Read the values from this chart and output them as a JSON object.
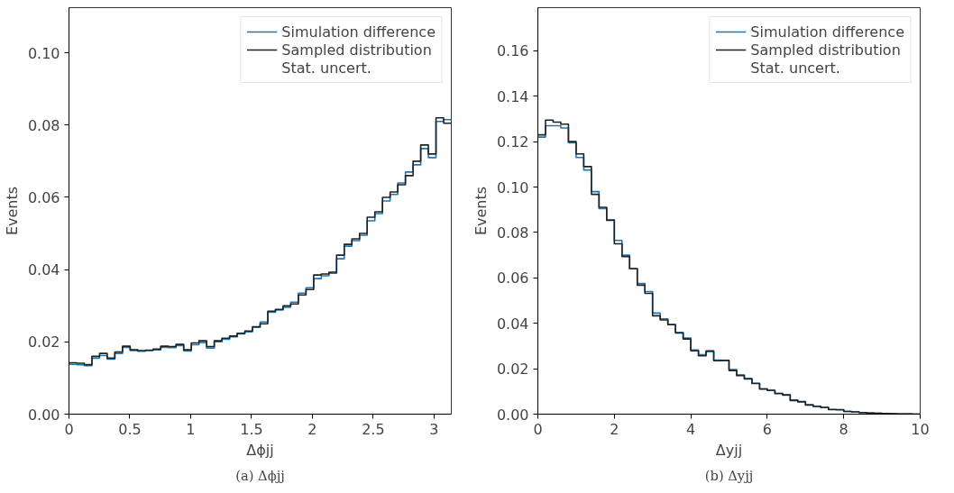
{
  "chart_data": [
    {
      "type": "histogram",
      "xlabel": "Δϕjj",
      "ylabel": "Events",
      "annotations": [
        "(a) Δϕjj",
        "Stat. uncert."
      ],
      "xlim": [
        0,
        3.1416
      ],
      "ylim": [
        0,
        0.1125
      ],
      "xticks": [
        0,
        0.5,
        1.0,
        1.5,
        2.0,
        2.5,
        3.0
      ],
      "yticks": [
        {
          "value": 0,
          "label": "0.00"
        },
        {
          "value": 0.02,
          "label": "0.02"
        },
        {
          "value": 0.04,
          "label": "0.04"
        },
        {
          "value": 0.06,
          "label": "0.06"
        },
        {
          "value": 0.08,
          "label": "0.08"
        },
        {
          "value": 0.1,
          "label": "0.10"
        }
      ],
      "grid": false,
      "legend": "top right",
      "legend_title": null,
      "bins": [
        0,
        0.0628,
        0.1257,
        0.1885,
        0.2513,
        0.3142,
        0.377,
        0.4398,
        0.5027,
        0.5655,
        0.6283,
        0.6912,
        0.754,
        0.8168,
        0.8796,
        0.9425,
        1.0053,
        1.0681,
        1.131,
        1.1938,
        1.2566,
        1.3195,
        1.3823,
        1.4451,
        1.508,
        1.5708,
        1.6336,
        1.6965,
        1.7593,
        1.8221,
        1.885,
        1.9478,
        2.0106,
        2.0735,
        2.1363,
        2.1991,
        2.2619,
        2.3248,
        2.3876,
        2.4504,
        2.5133,
        2.5761,
        2.6389,
        2.7018,
        2.7646,
        2.8274,
        2.8903,
        2.9531,
        3.0159,
        3.0788,
        3.1416
      ],
      "series": [
        {
          "name": "Simulation difference",
          "color": "#1f77b4",
          "values": [
            0.0138,
            0.0137,
            0.0134,
            0.0155,
            0.0162,
            0.0152,
            0.0168,
            0.0185,
            0.0176,
            0.0174,
            0.0176,
            0.0178,
            0.0185,
            0.0184,
            0.019,
            0.0175,
            0.0192,
            0.0198,
            0.0183,
            0.02,
            0.0207,
            0.0214,
            0.0222,
            0.0228,
            0.024,
            0.0255,
            0.0282,
            0.0288,
            0.0296,
            0.031,
            0.0335,
            0.035,
            0.0375,
            0.0383,
            0.039,
            0.043,
            0.0465,
            0.048,
            0.0495,
            0.0535,
            0.0555,
            0.059,
            0.0608,
            0.064,
            0.067,
            0.069,
            0.0735,
            0.071,
            0.081,
            0.0815
          ]
        },
        {
          "name": "Sampled distribution",
          "color": "#222222",
          "values": [
            0.0142,
            0.0141,
            0.0137,
            0.016,
            0.0168,
            0.0155,
            0.0172,
            0.0188,
            0.0178,
            0.0176,
            0.0177,
            0.018,
            0.0188,
            0.0187,
            0.0193,
            0.0178,
            0.0197,
            0.0203,
            0.0187,
            0.0203,
            0.021,
            0.0216,
            0.0224,
            0.023,
            0.0242,
            0.025,
            0.0285,
            0.029,
            0.03,
            0.0305,
            0.033,
            0.0345,
            0.0385,
            0.0388,
            0.0393,
            0.044,
            0.047,
            0.0485,
            0.05,
            0.0545,
            0.056,
            0.06,
            0.0615,
            0.0635,
            0.066,
            0.07,
            0.0745,
            0.072,
            0.082,
            0.0805
          ]
        }
      ]
    },
    {
      "type": "histogram",
      "xlabel": "Δyjj",
      "ylabel": "Events",
      "annotations": [
        "(b) Δyjj",
        "Stat. uncert."
      ],
      "xlim": [
        0,
        10
      ],
      "ylim": [
        0,
        0.179
      ],
      "xticks": [
        0,
        2,
        4,
        6,
        8,
        10
      ],
      "yticks": [
        {
          "value": 0,
          "label": "0.00"
        },
        {
          "value": 0.02,
          "label": "0.02"
        },
        {
          "value": 0.04,
          "label": "0.04"
        },
        {
          "value": 0.06,
          "label": "0.06"
        },
        {
          "value": 0.08,
          "label": "0.08"
        },
        {
          "value": 0.1,
          "label": "0.10"
        },
        {
          "value": 0.12,
          "label": "0.12"
        },
        {
          "value": 0.14,
          "label": "0.14"
        },
        {
          "value": 0.16,
          "label": "0.16"
        }
      ],
      "grid": false,
      "legend": "top right",
      "bins": [
        0,
        0.2,
        0.4,
        0.6,
        0.8,
        1.0,
        1.2,
        1.4,
        1.6,
        1.8,
        2.0,
        2.2,
        2.4,
        2.6,
        2.8,
        3.0,
        3.2,
        3.4,
        3.6,
        3.8,
        4.0,
        4.2,
        4.4,
        4.6,
        4.8,
        5.0,
        5.2,
        5.4,
        5.6,
        5.8,
        6.0,
        6.2,
        6.4,
        6.6,
        6.8,
        7.0,
        7.2,
        7.4,
        7.6,
        7.8,
        8.0,
        8.2,
        8.4,
        8.6,
        8.8,
        9.0,
        9.2,
        9.4,
        9.6,
        9.8,
        10
      ],
      "series": [
        {
          "name": "Simulation difference",
          "color": "#1f77b4",
          "values": [
            0.122,
            0.127,
            0.127,
            0.126,
            0.1195,
            0.113,
            0.1075,
            0.098,
            0.0905,
            0.0855,
            0.0765,
            0.07,
            0.064,
            0.0575,
            0.054,
            0.0445,
            0.042,
            0.0395,
            0.036,
            0.0335,
            0.0283,
            0.0262,
            0.0275,
            0.0238,
            0.0235,
            0.0196,
            0.0172,
            0.0158,
            0.0136,
            0.0112,
            0.0104,
            0.0092,
            0.0084,
            0.0062,
            0.0054,
            0.0041,
            0.0034,
            0.003,
            0.0021,
            0.0019,
            0.0012,
            0.001,
            0.0007,
            0.0005,
            0.0004,
            0.0003,
            0.0002,
            0.0001,
            0.0001,
            0.0
          ]
        },
        {
          "name": "Sampled distribution",
          "color": "#222222",
          "values": [
            0.123,
            0.1295,
            0.1286,
            0.1277,
            0.12,
            0.1146,
            0.109,
            0.0968,
            0.0911,
            0.0854,
            0.075,
            0.0694,
            0.0641,
            0.0568,
            0.0532,
            0.0433,
            0.0415,
            0.0394,
            0.0357,
            0.0331,
            0.0279,
            0.0257,
            0.0279,
            0.0235,
            0.0237,
            0.0192,
            0.017,
            0.0155,
            0.0135,
            0.011,
            0.0105,
            0.009,
            0.0085,
            0.006,
            0.0055,
            0.004,
            0.0035,
            0.003,
            0.002,
            0.002,
            0.0012,
            0.001,
            0.0007,
            0.0005,
            0.0004,
            0.0003,
            0.0002,
            0.0001,
            0.0001,
            0.0
          ]
        }
      ]
    }
  ]
}
